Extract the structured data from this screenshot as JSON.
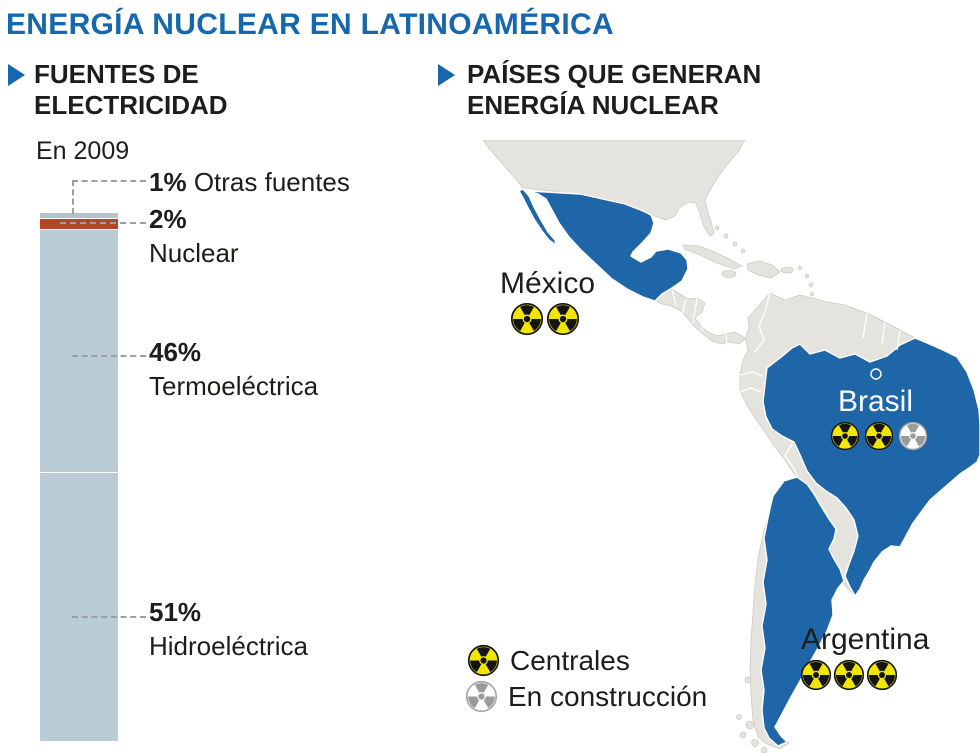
{
  "title": "ENERGÍA NUCLEAR EN LATINOAMÉRICA",
  "sections": {
    "left": {
      "heading_line1": "FUENTES DE",
      "heading_line2": "ELECTRICIDAD",
      "year": "En 2009"
    },
    "right": {
      "heading_line1": "PAÍSES QUE GENERAN",
      "heading_line2": "ENERGÍA NUCLEAR"
    }
  },
  "chart_data": {
    "type": "bar",
    "stacked": true,
    "title": "Fuentes de electricidad",
    "subtitle": "En 2009",
    "unit": "%",
    "categories": [
      "Otras fuentes",
      "Nuclear",
      "Termoeléctrica",
      "Hidroeléctrica"
    ],
    "values": [
      1,
      2,
      46,
      51
    ],
    "labels": [
      {
        "pct": "1%",
        "name": "Otras fuentes"
      },
      {
        "pct": "2%",
        "name": "Nuclear"
      },
      {
        "pct": "46%",
        "name": "Termoeléctrica"
      },
      {
        "pct": "51%",
        "name": "Hidroeléctrica"
      }
    ],
    "segment_colors": [
      "#b6c2c8",
      "#b04728",
      "#b9cbd5",
      "#b9cbd5"
    ]
  },
  "map": {
    "countries": [
      {
        "name": "México",
        "reactors_active": 2,
        "reactors_construction": 0
      },
      {
        "name": "Brasil",
        "reactors_active": 2,
        "reactors_construction": 1
      },
      {
        "name": "Argentina",
        "reactors_active": 3,
        "reactors_construction": 0
      }
    ]
  },
  "legend": [
    {
      "label": "Centrales",
      "type": "active"
    },
    {
      "label": "En construcción",
      "type": "construction"
    }
  ],
  "colors": {
    "accent_blue": "#1568ae",
    "map_highlight_blue": "#1e66a8",
    "land_gray": "#e4e3de",
    "bar_blue": "#b9cbd5",
    "nuclear_red": "#b04728",
    "symbol_yellow": "#f2e600"
  }
}
